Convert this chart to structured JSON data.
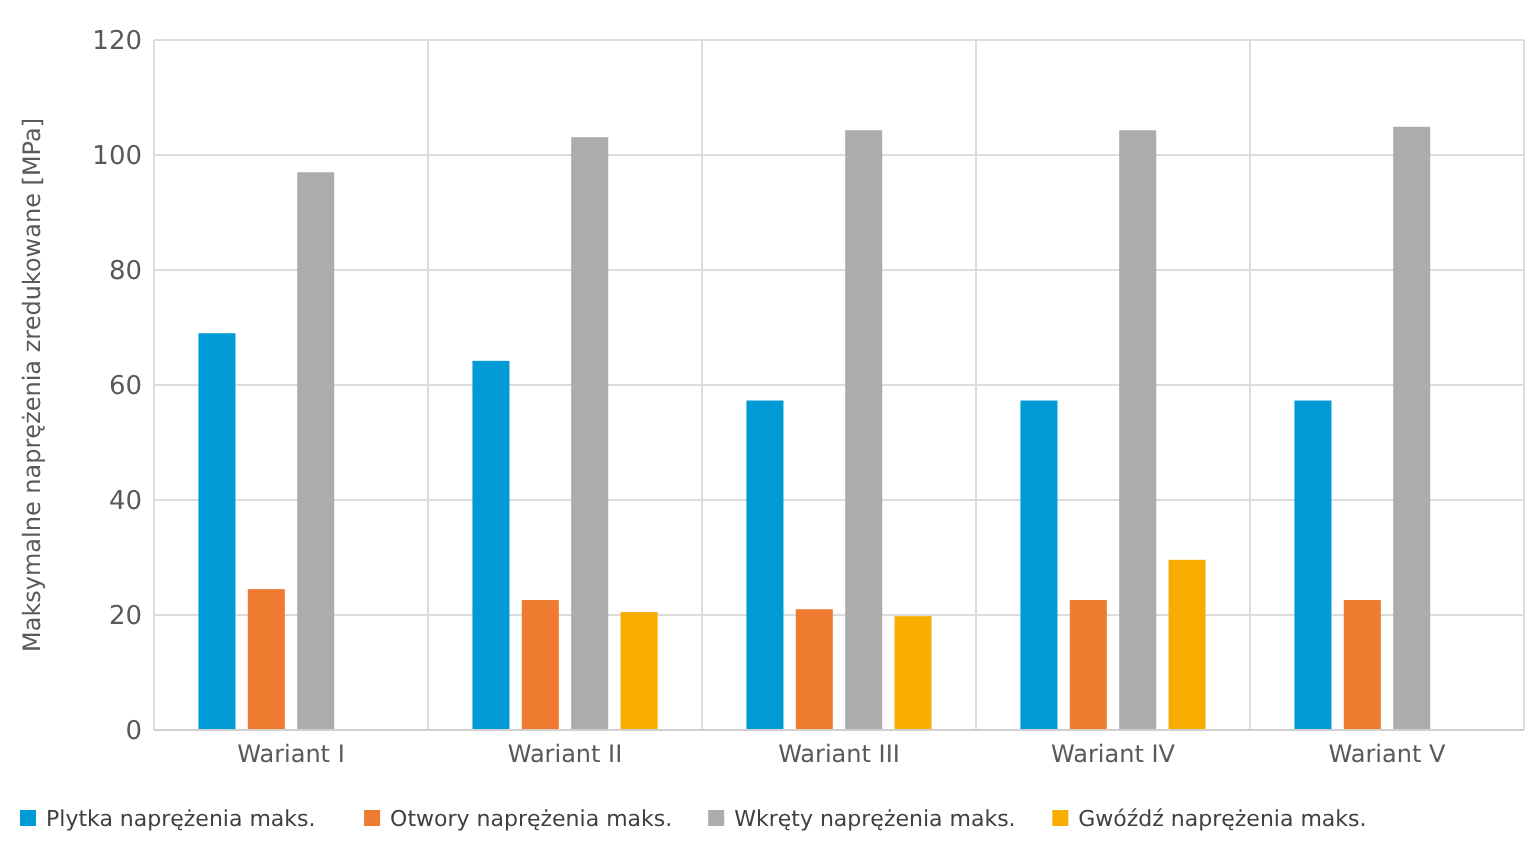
{
  "chart_data": {
    "type": "bar",
    "ylabel": "Maksymalne naprężenia zredukowane [MPa]",
    "categories": [
      "Wariant I",
      "Wariant II",
      "Wariant III",
      "Wariant IV",
      "Wariant V"
    ],
    "series": [
      {
        "name": "Plytka naprężenia maks.",
        "color": "#009ad4",
        "values": [
          69,
          64.2,
          57.3,
          57.3,
          57.3
        ]
      },
      {
        "name": "Otwory naprężenia maks.",
        "color": "#ef7b30",
        "values": [
          24.5,
          22.6,
          21,
          22.6,
          22.6
        ]
      },
      {
        "name": "Wkręty naprężenia maks.",
        "color": "#acacac",
        "values": [
          97,
          103.1,
          104.3,
          104.3,
          104.9
        ]
      },
      {
        "name": "Gwóźdź naprężenia maks.",
        "color": "#f8ad00",
        "values": [
          null,
          20.5,
          19.8,
          29.6,
          null
        ]
      }
    ],
    "ylim": [
      0,
      120
    ],
    "yticks": [
      0,
      20,
      40,
      60,
      80,
      100,
      120
    ],
    "grid": true,
    "legend": "bottom"
  }
}
